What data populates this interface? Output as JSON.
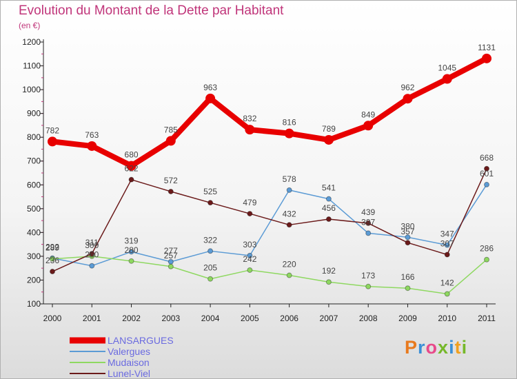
{
  "title": "Evolution du Montant de la Dette par Habitant",
  "subtitle": "(en €)",
  "logo": {
    "text": "Proxiti"
  },
  "chart_data": {
    "type": "line",
    "title": "Evolution du Montant de la Dette par Habitant",
    "subtitle": "(en €)",
    "x": [
      "2000",
      "2001",
      "2002",
      "2003",
      "2004",
      "2005",
      "2006",
      "2007",
      "2008",
      "2009",
      "2010",
      "2011"
    ],
    "ylim": [
      100,
      1200
    ],
    "yticks": [
      100,
      200,
      300,
      400,
      500,
      600,
      700,
      800,
      900,
      1000,
      1100,
      1200
    ],
    "grid": false,
    "legend_position": "bottom-left",
    "series": [
      {
        "name": "LANSARGUES",
        "color": "#e80000",
        "values": [
          782,
          763,
          680,
          785,
          963,
          832,
          816,
          789,
          849,
          962,
          1045,
          1131
        ]
      },
      {
        "name": "Valergues",
        "color": "#5b9bd5",
        "values": [
          292,
          260,
          319,
          277,
          322,
          303,
          578,
          541,
          397,
          380,
          347,
          601
        ]
      },
      {
        "name": "Mudaison",
        "color": "#8ed860",
        "values": [
          289,
          300,
          280,
          257,
          205,
          242,
          220,
          192,
          173,
          166,
          142,
          286
        ]
      },
      {
        "name": "Lunel-Viel",
        "color": "#6b1a1a",
        "values": [
          236,
          311,
          622,
          572,
          525,
          479,
          432,
          456,
          439,
          357,
          307,
          668
        ]
      }
    ]
  }
}
